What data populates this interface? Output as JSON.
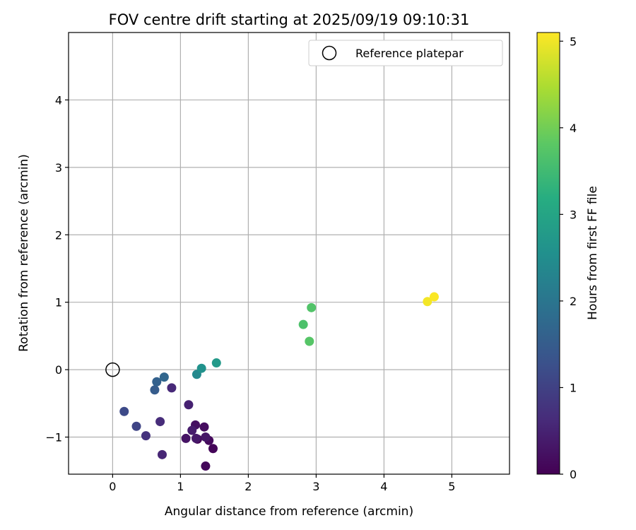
{
  "chart_data": {
    "type": "scatter",
    "title": "FOV centre drift starting at 2025/09/19 09:10:31",
    "xlabel": "Angular distance from reference (arcmin)",
    "ylabel": "Rotation from reference (arcmin)",
    "xlim": [
      -0.65,
      5.85
    ],
    "ylim": [
      -1.55,
      5.0
    ],
    "xticks": [
      0,
      1,
      2,
      3,
      4,
      5
    ],
    "yticks": [
      -1,
      0,
      1,
      2,
      3,
      4
    ],
    "grid": true,
    "legend": {
      "location": "top-right",
      "label": "Reference platepar"
    },
    "reference_point": {
      "x": 0,
      "y": 0
    },
    "colorbar": {
      "label": "Hours from first FF file",
      "range": [
        0,
        5.1
      ],
      "ticks": [
        0,
        1,
        2,
        3,
        4,
        5
      ],
      "colormap": "viridis"
    },
    "points": [
      {
        "x": 1.25,
        "y": -1.03,
        "hours": 0.02
      },
      {
        "x": 1.48,
        "y": -1.17,
        "hours": 0.06
      },
      {
        "x": 1.37,
        "y": -1.43,
        "hours": 0.1
      },
      {
        "x": 1.42,
        "y": -1.05,
        "hours": 0.14
      },
      {
        "x": 1.35,
        "y": -0.85,
        "hours": 0.18
      },
      {
        "x": 1.22,
        "y": -0.82,
        "hours": 0.22
      },
      {
        "x": 1.08,
        "y": -1.02,
        "hours": 0.27
      },
      {
        "x": 1.37,
        "y": -1.0,
        "hours": 0.31
      },
      {
        "x": 1.23,
        "y": -1.02,
        "hours": 0.36
      },
      {
        "x": 1.17,
        "y": -0.9,
        "hours": 0.4
      },
      {
        "x": 1.12,
        "y": -0.52,
        "hours": 0.48
      },
      {
        "x": 0.73,
        "y": -1.26,
        "hours": 0.55
      },
      {
        "x": 0.87,
        "y": -0.27,
        "hours": 0.6
      },
      {
        "x": 0.7,
        "y": -0.77,
        "hours": 0.65
      },
      {
        "x": 0.49,
        "y": -0.98,
        "hours": 0.75
      },
      {
        "x": 0.35,
        "y": -0.84,
        "hours": 1.05
      },
      {
        "x": 0.17,
        "y": -0.62,
        "hours": 1.15
      },
      {
        "x": 0.62,
        "y": -0.3,
        "hours": 1.5
      },
      {
        "x": 0.65,
        "y": -0.18,
        "hours": 1.6
      },
      {
        "x": 0.76,
        "y": -0.11,
        "hours": 1.7
      },
      {
        "x": 1.24,
        "y": -0.07,
        "hours": 2.4
      },
      {
        "x": 1.31,
        "y": 0.02,
        "hours": 2.6
      },
      {
        "x": 1.53,
        "y": 0.1,
        "hours": 2.75
      },
      {
        "x": 2.81,
        "y": 0.67,
        "hours": 3.65
      },
      {
        "x": 2.93,
        "y": 0.92,
        "hours": 3.7
      },
      {
        "x": 2.9,
        "y": 0.42,
        "hours": 3.75
      },
      {
        "x": 4.64,
        "y": 1.01,
        "hours": 5.02
      },
      {
        "x": 4.74,
        "y": 1.08,
        "hours": 5.08
      }
    ]
  }
}
